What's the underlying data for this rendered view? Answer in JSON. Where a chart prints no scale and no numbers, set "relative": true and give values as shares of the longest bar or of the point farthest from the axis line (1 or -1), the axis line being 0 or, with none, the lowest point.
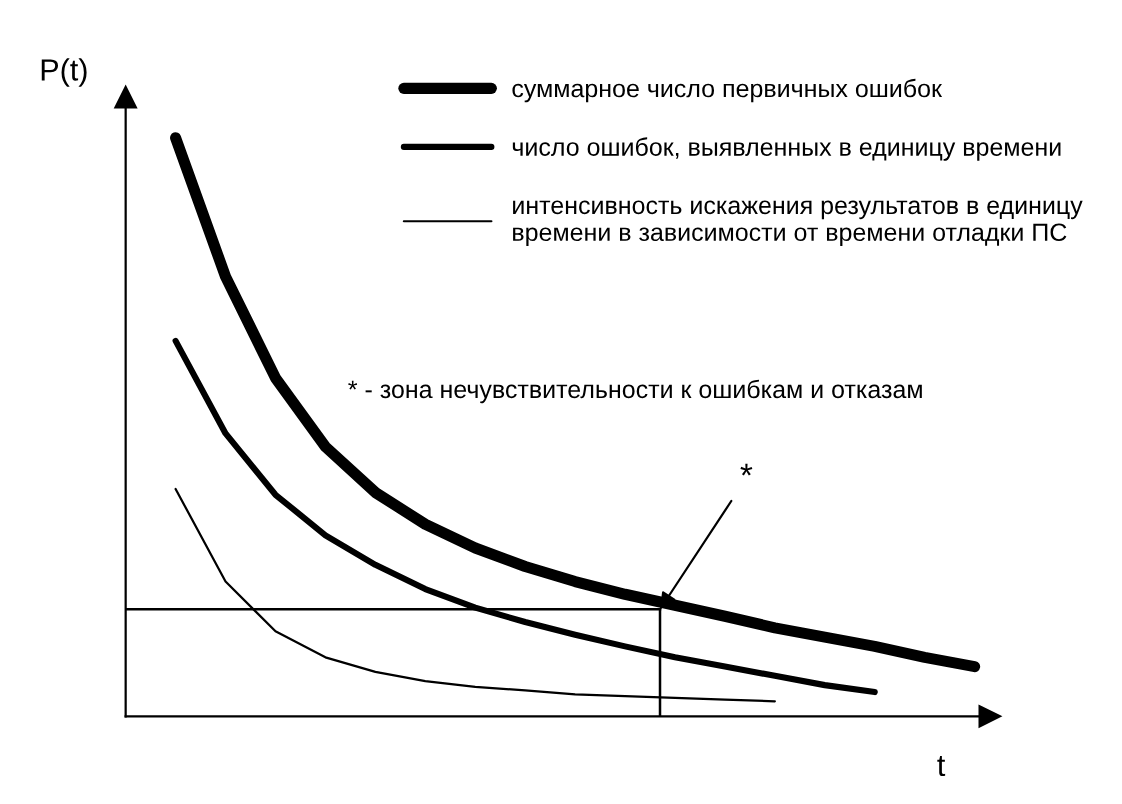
{
  "chart_data": {
    "type": "line",
    "relative": true,
    "xlabel": "t",
    "ylabel": "P(t)",
    "categories": [
      null,
      null,
      null,
      null,
      null,
      null,
      null,
      null,
      null,
      null,
      null,
      null,
      null,
      null,
      null,
      null,
      null
    ],
    "series": [
      {
        "name": "суммарное число первичных ошибок",
        "color": "#000000",
        "values": [
          1,
          0.76,
          0.585,
          0.466,
          0.387,
          0.332,
          0.291,
          0.259,
          0.233,
          0.211,
          0.192,
          0.173,
          0.153,
          0.137,
          0.121,
          0.102,
          0.086
        ]
      },
      {
        "name": "число ошибок, выявленных в единицу времени",
        "color": "#000000",
        "values": [
          0.649,
          0.489,
          0.383,
          0.313,
          0.262,
          0.22,
          0.188,
          0.163,
          0.141,
          0.121,
          0.102,
          0.086,
          0.07,
          0.054,
          0.042,
          null,
          null
        ]
      },
      {
        "name": "интенсивность искажения результатов в единицу\nвремени в зависимости от времени отладки ПС",
        "color": "#000000",
        "values": [
          0.393,
          0.233,
          0.147,
          0.102,
          0.077,
          0.061,
          0.051,
          0.045,
          0.038,
          0.035,
          0.032,
          0.029,
          0.026,
          null,
          null,
          null,
          null
        ]
      }
    ],
    "ref_lines": [
      {
        "axis": "y",
        "value": 0.185,
        "color": "#000000"
      }
    ],
    "annotations": [
      "*",
      "* - зона нечувствительности к ошибкам и отказам"
    ],
    "legend": "top right",
    "grid": false,
    "marker": "none",
    "line_style": "solid"
  }
}
